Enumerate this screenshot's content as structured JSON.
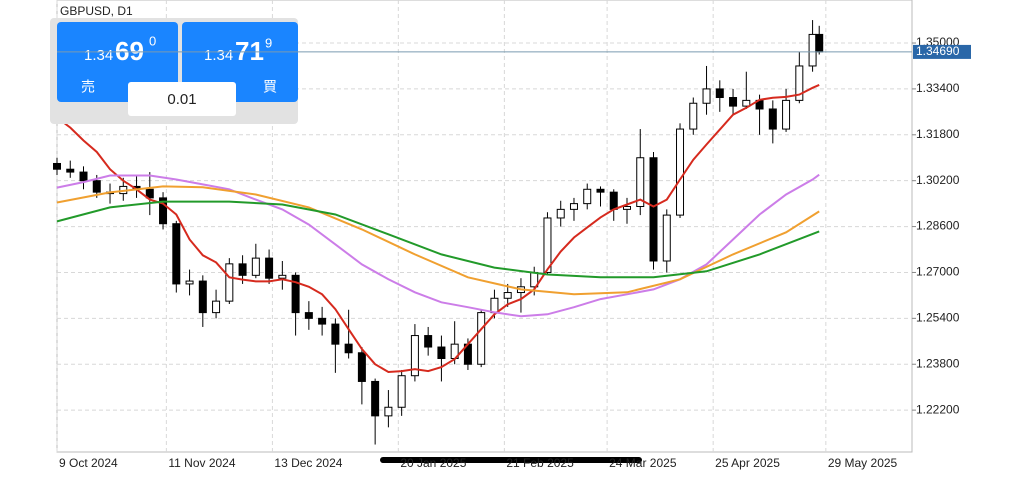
{
  "chart_data": {
    "type": "candlestick",
    "title": "GBPUSD, D1",
    "x": [
      "9 Oct 2024",
      "13 Oct 2024",
      "17 Oct 2024",
      "21 Oct 2024",
      "25 Oct 2024",
      "29 Oct 2024",
      "2 Nov 2024",
      "6 Nov 2024",
      "10 Nov 2024",
      "14 Nov 2024",
      "18 Nov 2024",
      "22 Nov 2024",
      "26 Nov 2024",
      "30 Nov 2024",
      "4 Dec 2024",
      "8 Dec 2024",
      "12 Dec 2024",
      "16 Dec 2024",
      "20 Dec 2024",
      "24 Dec 2024",
      "28 Dec 2024",
      "1 Jan 2025",
      "5 Jan 2025",
      "9 Jan 2025",
      "13 Jan 2025",
      "17 Jan 2025",
      "21 Jan 2025",
      "25 Jan 2025",
      "29 Jan 2025",
      "2 Feb 2025",
      "6 Feb 2025",
      "10 Feb 2025",
      "14 Feb 2025",
      "18 Feb 2025",
      "22 Feb 2025",
      "26 Feb 2025",
      "2 Mar 2025",
      "6 Mar 2025",
      "10 Mar 2025",
      "14 Mar 2025",
      "18 Mar 2025",
      "22 Mar 2025",
      "26 Mar 2025",
      "30 Mar 2025",
      "3 Apr 2025",
      "7 Apr 2025",
      "11 Apr 2025",
      "15 Apr 2025",
      "19 Apr 2025",
      "23 Apr 2025",
      "27 Apr 2025",
      "1 May 2025",
      "5 May 2025",
      "9 May 2025",
      "13 May 2025",
      "17 May 2025",
      "21 May 2025",
      "25 May 2025",
      "27 May 2025"
    ],
    "open": [
      1.308,
      1.306,
      1.305,
      1.302,
      1.298,
      1.2975,
      1.3,
      1.299,
      1.296,
      1.287,
      1.266,
      1.267,
      1.256,
      1.26,
      1.273,
      1.269,
      1.275,
      1.268,
      1.269,
      1.256,
      1.254,
      1.252,
      1.245,
      1.242,
      1.232,
      1.22,
      1.223,
      1.234,
      1.248,
      1.244,
      1.24,
      1.245,
      1.238,
      1.256,
      1.261,
      1.263,
      1.265,
      1.27,
      1.289,
      1.292,
      1.294,
      1.299,
      1.298,
      1.292,
      1.293,
      1.31,
      1.274,
      1.29,
      1.32,
      1.329,
      1.334,
      1.331,
      1.328,
      1.33,
      1.327,
      1.32,
      1.33,
      1.342,
      1.353
    ],
    "high": [
      1.31,
      1.309,
      1.307,
      1.304,
      1.301,
      1.303,
      1.304,
      1.305,
      1.298,
      1.288,
      1.271,
      1.269,
      1.264,
      1.275,
      1.276,
      1.28,
      1.278,
      1.274,
      1.27,
      1.26,
      1.258,
      1.254,
      1.257,
      1.244,
      1.233,
      1.229,
      1.236,
      1.252,
      1.251,
      1.248,
      1.253,
      1.247,
      1.257,
      1.264,
      1.266,
      1.268,
      1.272,
      1.291,
      1.295,
      1.296,
      1.301,
      1.3,
      1.299,
      1.296,
      1.32,
      1.312,
      1.292,
      1.322,
      1.331,
      1.342,
      1.337,
      1.334,
      1.34,
      1.332,
      1.33,
      1.334,
      1.347,
      1.358,
      1.356
    ],
    "low": [
      1.304,
      1.303,
      1.299,
      1.296,
      1.294,
      1.295,
      1.296,
      1.29,
      1.285,
      1.263,
      1.262,
      1.251,
      1.254,
      1.259,
      1.266,
      1.268,
      1.266,
      1.264,
      1.248,
      1.25,
      1.248,
      1.235,
      1.24,
      1.224,
      1.21,
      1.216,
      1.22,
      1.232,
      1.241,
      1.232,
      1.238,
      1.236,
      1.237,
      1.254,
      1.258,
      1.256,
      1.262,
      1.269,
      1.286,
      1.288,
      1.292,
      1.293,
      1.288,
      1.287,
      1.29,
      1.271,
      1.27,
      1.289,
      1.318,
      1.325,
      1.326,
      1.325,
      1.327,
      1.318,
      1.315,
      1.319,
      1.329,
      1.34,
      1.346
    ],
    "close": [
      1.306,
      1.305,
      1.302,
      1.298,
      1.2975,
      1.3,
      1.299,
      1.296,
      1.287,
      1.266,
      1.267,
      1.256,
      1.26,
      1.273,
      1.269,
      1.275,
      1.268,
      1.269,
      1.256,
      1.254,
      1.252,
      1.245,
      1.242,
      1.232,
      1.22,
      1.223,
      1.234,
      1.248,
      1.244,
      1.24,
      1.245,
      1.238,
      1.256,
      1.261,
      1.263,
      1.265,
      1.27,
      1.289,
      1.292,
      1.294,
      1.299,
      1.298,
      1.292,
      1.293,
      1.31,
      1.274,
      1.29,
      1.32,
      1.329,
      1.334,
      1.331,
      1.328,
      1.33,
      1.327,
      1.32,
      1.33,
      1.342,
      1.353,
      1.3469
    ],
    "series": [
      {
        "color": "#d62a1e",
        "x": [
          "9 Oct 2024",
          "13 Oct 2024",
          "17 Oct 2024",
          "21 Oct 2024",
          "25 Oct 2024",
          "29 Oct 2024",
          "2 Nov 2024",
          "6 Nov 2024",
          "10 Nov 2024",
          "14 Nov 2024",
          "18 Nov 2024",
          "22 Nov 2024",
          "26 Nov 2024",
          "30 Nov 2024",
          "4 Dec 2024",
          "8 Dec 2024",
          "12 Dec 2024",
          "16 Dec 2024",
          "20 Dec 2024",
          "24 Dec 2024",
          "28 Dec 2024",
          "1 Jan 2025",
          "5 Jan 2025",
          "9 Jan 2025",
          "13 Jan 2025",
          "17 Jan 2025",
          "21 Jan 2025",
          "25 Jan 2025",
          "29 Jan 2025",
          "2 Feb 2025",
          "6 Feb 2025",
          "10 Feb 2025",
          "14 Feb 2025",
          "18 Feb 2025",
          "22 Feb 2025",
          "26 Feb 2025",
          "2 Mar 2025",
          "6 Mar 2025",
          "10 Mar 2025",
          "14 Mar 2025",
          "18 Mar 2025",
          "22 Mar 2025",
          "26 Mar 2025",
          "30 Mar 2025",
          "3 Apr 2025",
          "7 Apr 2025",
          "11 Apr 2025",
          "15 Apr 2025",
          "19 Apr 2025",
          "23 Apr 2025",
          "27 Apr 2025",
          "1 May 2025",
          "5 May 2025",
          "9 May 2025",
          "13 May 2025",
          "17 May 2025",
          "21 May 2025",
          "25 May 2025",
          "27 May 2025"
        ],
        "values": [
          1.324,
          1.3205,
          1.316,
          1.312,
          1.306,
          1.302,
          1.299,
          1.2954,
          1.294,
          1.2902,
          1.2815,
          1.276,
          1.2735,
          1.2683,
          1.2675,
          1.2669,
          1.2669,
          1.2676,
          1.2666,
          1.265,
          1.2624,
          1.2572,
          1.2502,
          1.2433,
          1.238,
          1.2353,
          1.2356,
          1.2363,
          1.2356,
          1.237,
          1.2398,
          1.245,
          1.2502,
          1.2554,
          1.2589,
          1.2607,
          1.2641,
          1.2711,
          1.2773,
          1.2822,
          1.2857,
          1.2892,
          1.292,
          1.2937,
          1.2954,
          1.293,
          1.2954,
          1.3024,
          1.3093,
          1.3146,
          1.3198,
          1.325,
          1.3274,
          1.3302,
          1.3309,
          1.3312,
          1.332,
          1.3344,
          1.3354
        ]
      },
      {
        "color": "#cc7de8",
        "x": [
          "9 Oct 2024",
          "17 Oct 2024",
          "25 Oct 2024",
          "6 Nov 2024",
          "14 Nov 2024",
          "22 Nov 2024",
          "30 Nov 2024",
          "8 Dec 2024",
          "16 Dec 2024",
          "24 Dec 2024",
          "1 Jan 2025",
          "9 Jan 2025",
          "17 Jan 2025",
          "25 Jan 2025",
          "2 Feb 2025",
          "10 Feb 2025",
          "18 Feb 2025",
          "26 Feb 2025",
          "6 Mar 2025",
          "14 Mar 2025",
          "22 Mar 2025",
          "30 Mar 2025",
          "7 Apr 2025",
          "15 Apr 2025",
          "23 Apr 2025",
          "1 May 2025",
          "9 May 2025",
          "17 May 2025",
          "25 May 2025",
          "27 May 2025"
        ],
        "values": [
          1.2996,
          1.3015,
          1.3038,
          1.3038,
          1.3024,
          1.3007,
          1.299,
          1.2954,
          1.292,
          1.2867,
          1.2798,
          1.2728,
          1.2676,
          1.2631,
          1.2596,
          1.2579,
          1.2561,
          1.2547,
          1.2554,
          1.2579,
          1.2607,
          1.2624,
          1.2641,
          1.2676,
          1.2728,
          1.2815,
          1.2902,
          1.2972,
          1.3024,
          1.3041
        ]
      },
      {
        "color": "#f0a030",
        "x": [
          "9 Oct 2024",
          "25 Oct 2024",
          "10 Nov 2024",
          "22 Nov 2024",
          "8 Dec 2024",
          "24 Dec 2024",
          "9 Jan 2025",
          "25 Jan 2025",
          "10 Feb 2025",
          "26 Feb 2025",
          "14 Mar 2025",
          "30 Mar 2025",
          "15 Apr 2025",
          "1 May 2025",
          "17 May 2025",
          "27 May 2025"
        ],
        "values": [
          1.2944,
          1.2979,
          1.3,
          1.2997,
          1.2972,
          1.2927,
          1.285,
          1.2763,
          1.2683,
          1.2641,
          1.2624,
          1.2631,
          1.2676,
          1.2763,
          1.284,
          1.2913
        ]
      },
      {
        "color": "#229a2a",
        "x": [
          "9 Oct 2024",
          "25 Oct 2024",
          "10 Nov 2024",
          "30 Nov 2024",
          "16 Dec 2024",
          "1 Jan 2025",
          "17 Jan 2025",
          "2 Feb 2025",
          "18 Feb 2025",
          "6 Mar 2025",
          "22 Mar 2025",
          "7 Apr 2025",
          "23 Apr 2025",
          "9 May 2025",
          "27 May 2025"
        ],
        "values": [
          1.2878,
          1.2927,
          1.2947,
          1.2947,
          1.2937,
          1.2902,
          1.2833,
          1.2763,
          1.2717,
          1.2693,
          1.2683,
          1.2683,
          1.2704,
          1.2763,
          1.2843
        ]
      }
    ],
    "xlim": [
      "9 Oct 2024",
      "24 Jun 2025"
    ],
    "xticks": [
      "9 Oct 2024",
      "11 Nov 2024",
      "13 Dec 2024",
      "20 Jan 2025",
      "21 Feb 2025",
      "24 Mar 2025",
      "25 Apr 2025",
      "29 May 2025"
    ],
    "ylim": [
      1.2074,
      1.365
    ],
    "yticks": [
      {
        "value": 1.35,
        "label": "1.35000"
      },
      {
        "value": 1.334,
        "label": "1.33400"
      },
      {
        "value": 1.318,
        "label": "1.31800"
      },
      {
        "value": 1.302,
        "label": "1.30200"
      },
      {
        "value": 1.286,
        "label": "1.28600"
      },
      {
        "value": 1.27,
        "label": "1.27000"
      },
      {
        "value": 1.254,
        "label": "1.25400"
      },
      {
        "value": 1.238,
        "label": "1.23800"
      },
      {
        "value": 1.222,
        "label": "1.22200"
      }
    ],
    "grid": true,
    "current_price": {
      "value": 1.3469,
      "label": "1.34690"
    }
  },
  "trade_panel": {
    "sell": {
      "label": "売",
      "price_small": "1.34",
      "price_big": "69",
      "price_sup": "0"
    },
    "buy": {
      "label": "買",
      "price_small": "1.34",
      "price_big": "71",
      "price_sup": "9"
    },
    "lot": "0.01"
  }
}
